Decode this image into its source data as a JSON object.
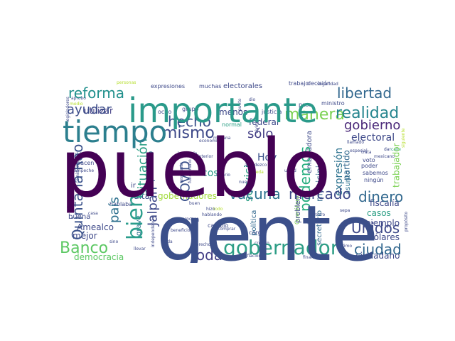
{
  "chart_data": {
    "type": "wordcloud",
    "words": [
      {
        "text": "pueblo",
        "color": "#440154"
      },
      {
        "text": "gente",
        "color": "#3b4f8a"
      },
      {
        "text": "importante",
        "color": "#2a9a8a"
      },
      {
        "text": "tiempo",
        "color": "#2c7f8e"
      },
      {
        "text": "gobernador",
        "color": "#2e9e86"
      },
      {
        "text": "reforma",
        "color": "#1f8f8b"
      },
      {
        "text": "ayudar",
        "color": "#3d4d8a"
      },
      {
        "text": "libertad",
        "color": "#31678e"
      },
      {
        "text": "mismo",
        "color": "#3e4989"
      },
      {
        "text": "hecho",
        "color": "#3b528b"
      },
      {
        "text": "manera",
        "color": "#7ad151"
      },
      {
        "text": "realidad",
        "color": "#25858e"
      },
      {
        "text": "bien",
        "color": "#2a9d8c"
      },
      {
        "text": "Quintana Roo",
        "color": "#3b528b"
      },
      {
        "text": "país",
        "color": "#2d708e"
      },
      {
        "text": "situación",
        "color": "#2c9f85"
      },
      {
        "text": "Jalpan",
        "color": "#3e4989"
      },
      {
        "text": "COVID",
        "color": "#3b528b"
      },
      {
        "text": "podemos",
        "color": "#28ae80"
      },
      {
        "text": "gobierno",
        "color": "#482677"
      },
      {
        "text": "sólo",
        "color": "#433e85"
      },
      {
        "text": "electoral",
        "color": "#3e4989"
      },
      {
        "text": "vacuna",
        "color": "#2c728e"
      },
      {
        "text": "mercado",
        "color": "#3e4989"
      },
      {
        "text": "dinero",
        "color": "#31688e"
      },
      {
        "text": "Banco",
        "color": "#5cc863"
      },
      {
        "text": "toda",
        "color": "#433e85"
      },
      {
        "text": "ciudad",
        "color": "#31678e"
      },
      {
        "text": "Unidos",
        "color": "#3e4989"
      },
      {
        "text": "servicio",
        "color": "#2c9f85"
      },
      {
        "text": "cosa",
        "color": "#2a9a8a"
      },
      {
        "text": "Hoy",
        "color": "#3b528b"
      },
      {
        "text": "municipio",
        "color": "#31688e"
      },
      {
        "text": "expresión",
        "color": "#2c728e"
      },
      {
        "text": "partido",
        "color": "#31678e"
      },
      {
        "text": "público",
        "color": "#31688e"
      },
      {
        "text": "utilizar",
        "color": "#433e85"
      },
      {
        "text": "menos",
        "color": "#3e4989"
      },
      {
        "text": "federal",
        "color": "#3e4989"
      },
      {
        "text": "falta",
        "color": "#3e4989"
      },
      {
        "text": "gobernadores",
        "color": "#a0da39"
      },
      {
        "text": "Amealco",
        "color": "#3e4989"
      },
      {
        "text": "democracia",
        "color": "#5cc863"
      },
      {
        "text": "mejor",
        "color": "#3e4989"
      },
      {
        "text": "buena",
        "color": "#3e4989"
      },
      {
        "text": "grave",
        "color": "#2c728e"
      },
      {
        "text": "casos",
        "color": "#2c9f85"
      },
      {
        "text": "ejemplo",
        "color": "#3e4989"
      },
      {
        "text": "dólares",
        "color": "#3e4989"
      },
      {
        "text": "fiscalía",
        "color": "#3e4989"
      },
      {
        "text": "ciudadano",
        "color": "#3e4989"
      },
      {
        "text": "trabajador",
        "color": "#7ad151"
      },
      {
        "text": "secretario",
        "color": "#31688e"
      },
      {
        "text": "problema",
        "color": "#3e4989"
      },
      {
        "text": "política",
        "color": "#31688e"
      },
      {
        "text": "asunto",
        "color": "#2c728e"
      },
      {
        "text": "embajadora",
        "color": "#3e4989"
      },
      {
        "text": "electorales",
        "color": "#3e4989"
      },
      {
        "text": "expresiones",
        "color": "#3e4989"
      },
      {
        "text": "muchas",
        "color": "#3e4989"
      },
      {
        "text": "trabajo",
        "color": "#3e4989"
      },
      {
        "text": "decisión",
        "color": "#3e4989"
      },
      {
        "text": "ministro",
        "color": "#3e4989"
      },
      {
        "text": "peso",
        "color": "#3e4989"
      },
      {
        "text": "seguridad",
        "color": "#3e4989"
      },
      {
        "text": "justicia",
        "color": "#3e4989"
      },
      {
        "text": "normal",
        "color": "#2c9f85"
      },
      {
        "text": "mañana",
        "color": "#3e4989"
      },
      {
        "text": "economía",
        "color": "#3e4989"
      },
      {
        "text": "grupo",
        "color": "#3e4989"
      },
      {
        "text": "ocho",
        "color": "#3e4989"
      },
      {
        "text": "aprobó",
        "color": "#3e4989"
      },
      {
        "text": "medio",
        "color": "#b5de2b"
      },
      {
        "text": "cuidarnos",
        "color": "#3e4989"
      },
      {
        "text": "hacen",
        "color": "#3e4989"
      },
      {
        "text": "Campeche",
        "color": "#3e4989"
      },
      {
        "text": "funcionario",
        "color": "#3e4989"
      },
      {
        "text": "respuesta",
        "color": "#3e4989"
      },
      {
        "text": "Exterior",
        "color": "#3e4989"
      },
      {
        "text": "agradezco",
        "color": "#3e4989"
      },
      {
        "text": "pueda",
        "color": "#b5de2b"
      },
      {
        "text": "especial",
        "color": "#3e4989"
      },
      {
        "text": "llamado",
        "color": "#3e4989"
      },
      {
        "text": "mexicano",
        "color": "#3e4989"
      },
      {
        "text": "voto",
        "color": "#3e4989"
      },
      {
        "text": "poder",
        "color": "#3e4989"
      },
      {
        "text": "sabemos",
        "color": "#3e4989"
      },
      {
        "text": "ningún",
        "color": "#3e4989"
      },
      {
        "text": "calle",
        "color": "#2c9f85"
      },
      {
        "text": "siguiente",
        "color": "#b5de2b"
      },
      {
        "text": "independencia",
        "color": "#3e4989"
      },
      {
        "text": "hablaba",
        "color": "#3e4989"
      },
      {
        "text": "casa",
        "color": "#3e4989"
      },
      {
        "text": "salario",
        "color": "#3e4989"
      },
      {
        "text": "libre",
        "color": "#3e4989"
      },
      {
        "text": "cambio",
        "color": "#3e4989"
      },
      {
        "text": "iba",
        "color": "#3e4989"
      },
      {
        "text": "derecho",
        "color": "#3e4989"
      },
      {
        "text": "cargo",
        "color": "#3e4989"
      },
      {
        "text": "Querétaro",
        "color": "#7ad151"
      },
      {
        "text": "quiere",
        "color": "#3e4989"
      },
      {
        "text": "sepa",
        "color": "#3e4989"
      },
      {
        "text": "crédito",
        "color": "#3e4989"
      },
      {
        "text": "último",
        "color": "#3e4989"
      },
      {
        "text": "felicidad",
        "color": "#3e4989"
      },
      {
        "text": "inflación",
        "color": "#3e4989"
      },
      {
        "text": "financieros",
        "color": "#3e4989"
      },
      {
        "text": "beneficio",
        "color": "#3e4989"
      },
      {
        "text": "vida",
        "color": "#3e4989"
      },
      {
        "text": "llevar",
        "color": "#3e4989"
      },
      {
        "text": "sino",
        "color": "#3e4989"
      },
      {
        "text": "comisiones",
        "color": "#3e4989"
      },
      {
        "text": "legisladores",
        "color": "#3e4989"
      },
      {
        "text": "integrantes",
        "color": "#3e4989"
      },
      {
        "text": "propósito",
        "color": "#3e4989"
      },
      {
        "text": "personas",
        "color": "#b5de2b"
      },
      {
        "text": "hablando",
        "color": "#3e4989"
      },
      {
        "text": "haciendo",
        "color": "#3e4989"
      },
      {
        "text": "punto",
        "color": "#3e4989"
      },
      {
        "text": "vivimos",
        "color": "#3e4989"
      },
      {
        "text": "trata",
        "color": "#3e4989"
      },
      {
        "text": "dio",
        "color": "#3e4989"
      },
      {
        "text": "dar",
        "color": "#3e4989"
      },
      {
        "text": "comprar",
        "color": "#3e4989"
      },
      {
        "text": "ir",
        "color": "#3e4989"
      },
      {
        "text": "proceso",
        "color": "#3e4989"
      },
      {
        "text": "todo",
        "color": "#b5de2b"
      },
      {
        "text": "usted",
        "color": "#3e4989"
      },
      {
        "text": "hizo",
        "color": "#3e4989"
      },
      {
        "text": "buen",
        "color": "#3e4989"
      },
      {
        "text": "número",
        "color": "#3e4989"
      },
      {
        "text": "nuevo",
        "color": "#3e4989"
      }
    ]
  }
}
